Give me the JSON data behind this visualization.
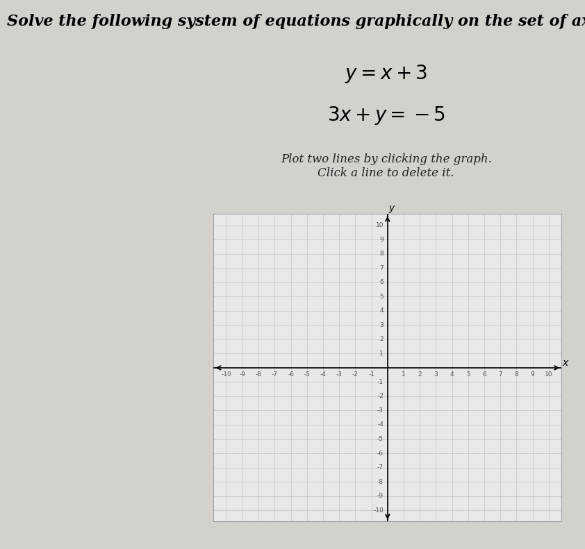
{
  "title_text": "Solve the following system of equations graphically on the set of axes below.",
  "eq1_latex": "$y = x + 3$",
  "eq2_latex": "$3x + y = -5$",
  "instruction_line1": "Plot two lines by clicking the graph.",
  "instruction_line2": "Click a line to delete it.",
  "axis_range": [
    -10,
    10
  ],
  "grid_color": "#bbbbbb",
  "grid_linewidth": 0.4,
  "axis_linewidth": 1.2,
  "plot_bg_color": "#e8e8e8",
  "fig_bg_color": "#d4d0cc",
  "title_fontsize": 16,
  "eq_fontsize": 20,
  "instruction_fontsize": 12,
  "tick_fontsize": 6.5,
  "axis_label_fontsize": 10
}
